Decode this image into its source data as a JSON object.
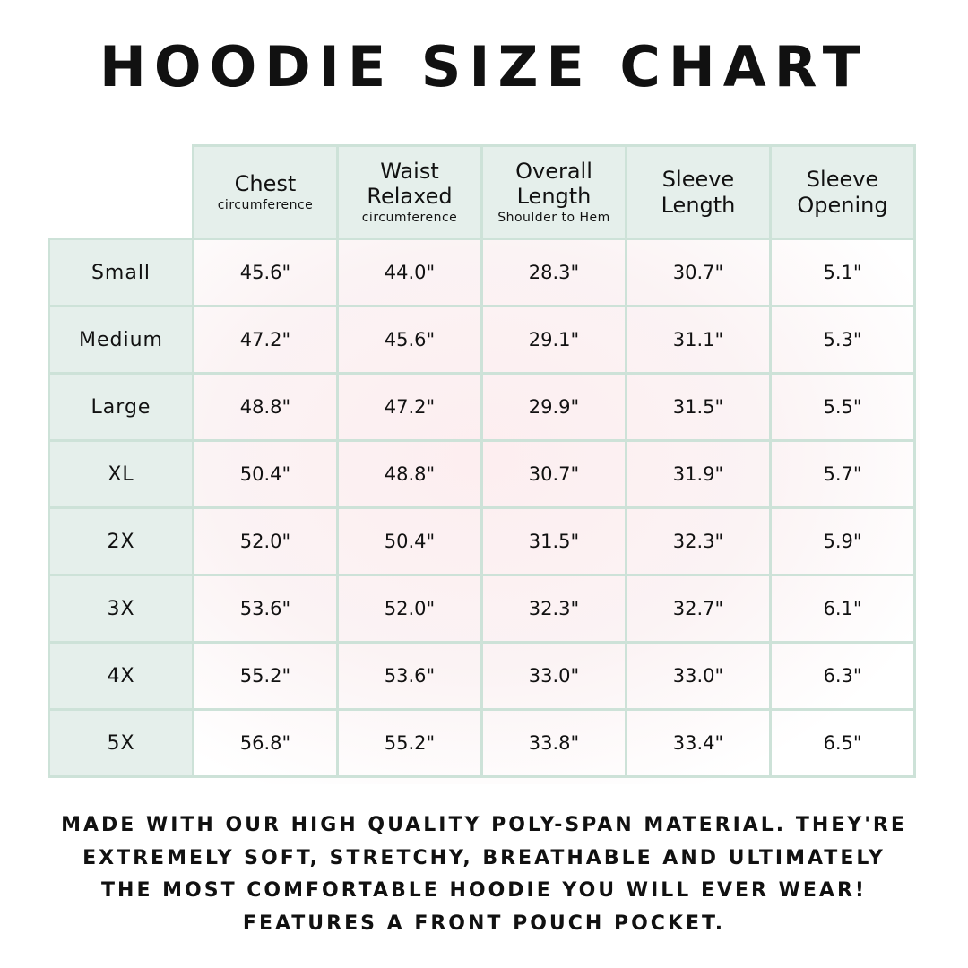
{
  "title": "HOODIE SIZE CHART",
  "columns": [
    {
      "label": "Chest",
      "sub": "circumference"
    },
    {
      "label": "Waist Relaxed",
      "sub": "circumference"
    },
    {
      "label": "Overall Length",
      "sub": "Shoulder to Hem"
    },
    {
      "label": "Sleeve Length",
      "sub": ""
    },
    {
      "label": "Sleeve Opening",
      "sub": ""
    }
  ],
  "rows": [
    {
      "size": "Small",
      "values": [
        "45.6\"",
        "44.0\"",
        "28.3\"",
        "30.7\"",
        "5.1\""
      ]
    },
    {
      "size": "Medium",
      "values": [
        "47.2\"",
        "45.6\"",
        "29.1\"",
        "31.1\"",
        "5.3\""
      ]
    },
    {
      "size": "Large",
      "values": [
        "48.8\"",
        "47.2\"",
        "29.9\"",
        "31.5\"",
        "5.5\""
      ]
    },
    {
      "size": "XL",
      "values": [
        "50.4\"",
        "48.8\"",
        "30.7\"",
        "31.9\"",
        "5.7\""
      ]
    },
    {
      "size": "2X",
      "values": [
        "52.0\"",
        "50.4\"",
        "31.5\"",
        "32.3\"",
        "5.9\""
      ]
    },
    {
      "size": "3X",
      "values": [
        "53.6\"",
        "52.0\"",
        "32.3\"",
        "32.7\"",
        "6.1\""
      ]
    },
    {
      "size": "4X",
      "values": [
        "55.2\"",
        "53.6\"",
        "33.0\"",
        "33.0\"",
        "6.3\""
      ]
    },
    {
      "size": "5X",
      "values": [
        "56.8\"",
        "55.2\"",
        "33.8\"",
        "33.4\"",
        "6.5\""
      ]
    }
  ],
  "footer": [
    "Made with our high quality poly-span material. They're",
    "extremely soft, stretchy, breathable and ultimately",
    "the most comfortable hoodie you will ever wear!",
    "Features a front pouch pocket."
  ],
  "colors": {
    "header_bg": "#e5efeb",
    "border": "#cde2d8",
    "watermark_wash": "#fdeef0"
  }
}
